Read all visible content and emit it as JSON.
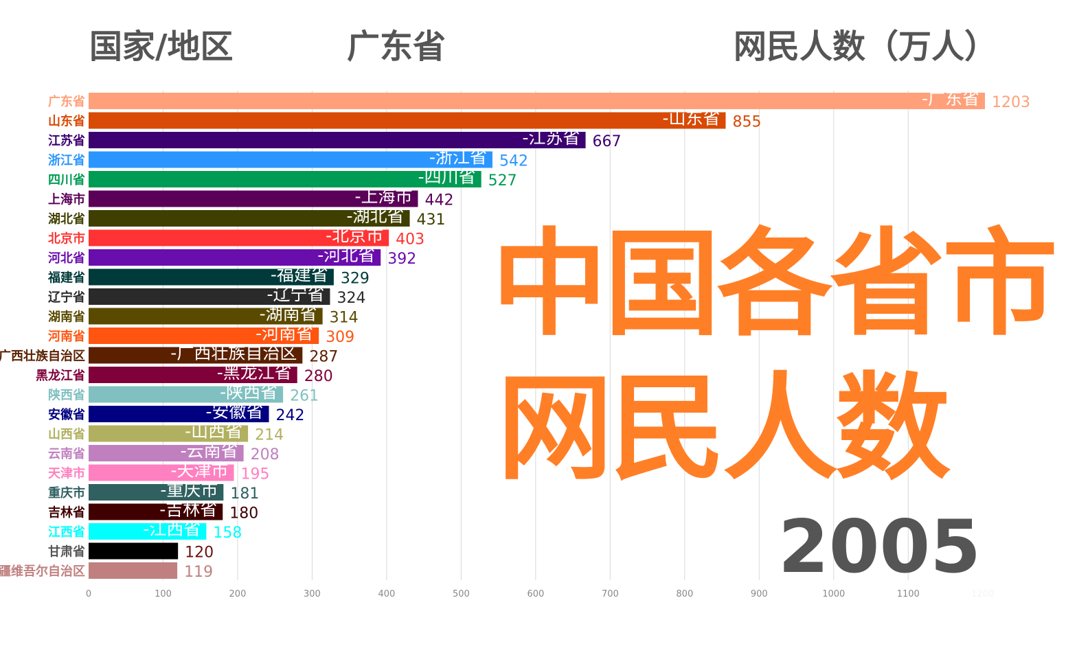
{
  "header": {
    "col1": "国家/地区",
    "current_leader": "广东省",
    "col3": "网民人数（万人）"
  },
  "overlay": {
    "line1": "中国各省市",
    "line2": "网民人数",
    "year": "2005"
  },
  "chart_data": {
    "type": "bar",
    "orientation": "horizontal",
    "xlim": [
      0,
      1200
    ],
    "ticks": [
      0,
      100,
      200,
      300,
      400,
      500,
      600,
      700,
      800,
      900,
      1000,
      1100,
      1200
    ],
    "grid": true,
    "items": [
      {
        "name": "广东省",
        "value": 1203,
        "color": "#FFA07A",
        "inner": "-广东省"
      },
      {
        "name": "山东省",
        "value": 855,
        "color": "#D84A05",
        "inner": "-山东省"
      },
      {
        "name": "江苏省",
        "value": 667,
        "color": "#3D0070",
        "inner": "-江苏省"
      },
      {
        "name": "浙江省",
        "value": 542,
        "color": "#2B96FF",
        "inner": "-浙江省"
      },
      {
        "name": "四川省",
        "value": 527,
        "color": "#009B55",
        "inner": "-四川省"
      },
      {
        "name": "上海市",
        "value": 442,
        "color": "#5A0058",
        "inner": "-上海市"
      },
      {
        "name": "湖北省",
        "value": 431,
        "color": "#3F3F00",
        "inner": "-湖北省"
      },
      {
        "name": "北京市",
        "value": 403,
        "color": "#FF3333",
        "inner": "-北京市"
      },
      {
        "name": "河北省",
        "value": 392,
        "color": "#6A0DAD",
        "inner": "-河北省"
      },
      {
        "name": "福建省",
        "value": 329,
        "color": "#003A3A",
        "inner": "-福建省"
      },
      {
        "name": "辽宁省",
        "value": 324,
        "color": "#2A2A2A",
        "inner": "-辽宁省"
      },
      {
        "name": "湖南省",
        "value": 314,
        "color": "#5A4A00",
        "inner": "-湖南省"
      },
      {
        "name": "河南省",
        "value": 309,
        "color": "#FF5511",
        "inner": "-河南省"
      },
      {
        "name": "广西壮族自治区",
        "value": 287,
        "color": "#5A2000",
        "inner": "-广西壮族自治区"
      },
      {
        "name": "黑龙江省",
        "value": 280,
        "color": "#80003A",
        "inner": "-黑龙江省"
      },
      {
        "name": "陕西省",
        "value": 261,
        "color": "#80C0C0",
        "inner": "-陕西省"
      },
      {
        "name": "安徽省",
        "value": 242,
        "color": "#000080",
        "inner": "-安徽省"
      },
      {
        "name": "山西省",
        "value": 214,
        "color": "#B0B060",
        "inner": "-山西省"
      },
      {
        "name": "云南省",
        "value": 208,
        "color": "#C080C0",
        "inner": "-云南省"
      },
      {
        "name": "天津市",
        "value": 195,
        "color": "#FF80C0",
        "inner": "-天津市"
      },
      {
        "name": "重庆市",
        "value": 181,
        "color": "#306060",
        "inner": "-重庆市"
      },
      {
        "name": "吉林省",
        "value": 180,
        "color": "#400000",
        "inner": "-吉林省"
      },
      {
        "name": "江西省",
        "value": 158,
        "color": "#00FFFF",
        "inner": "-江西省"
      },
      {
        "name": "甘肃省",
        "value": 120,
        "color": "#000000",
        "labelColor": "#555555",
        "valueColor": "#6B1010"
      },
      {
        "name": "新疆维吾尔自治区",
        "value": 119,
        "color": "#C08080"
      }
    ]
  }
}
